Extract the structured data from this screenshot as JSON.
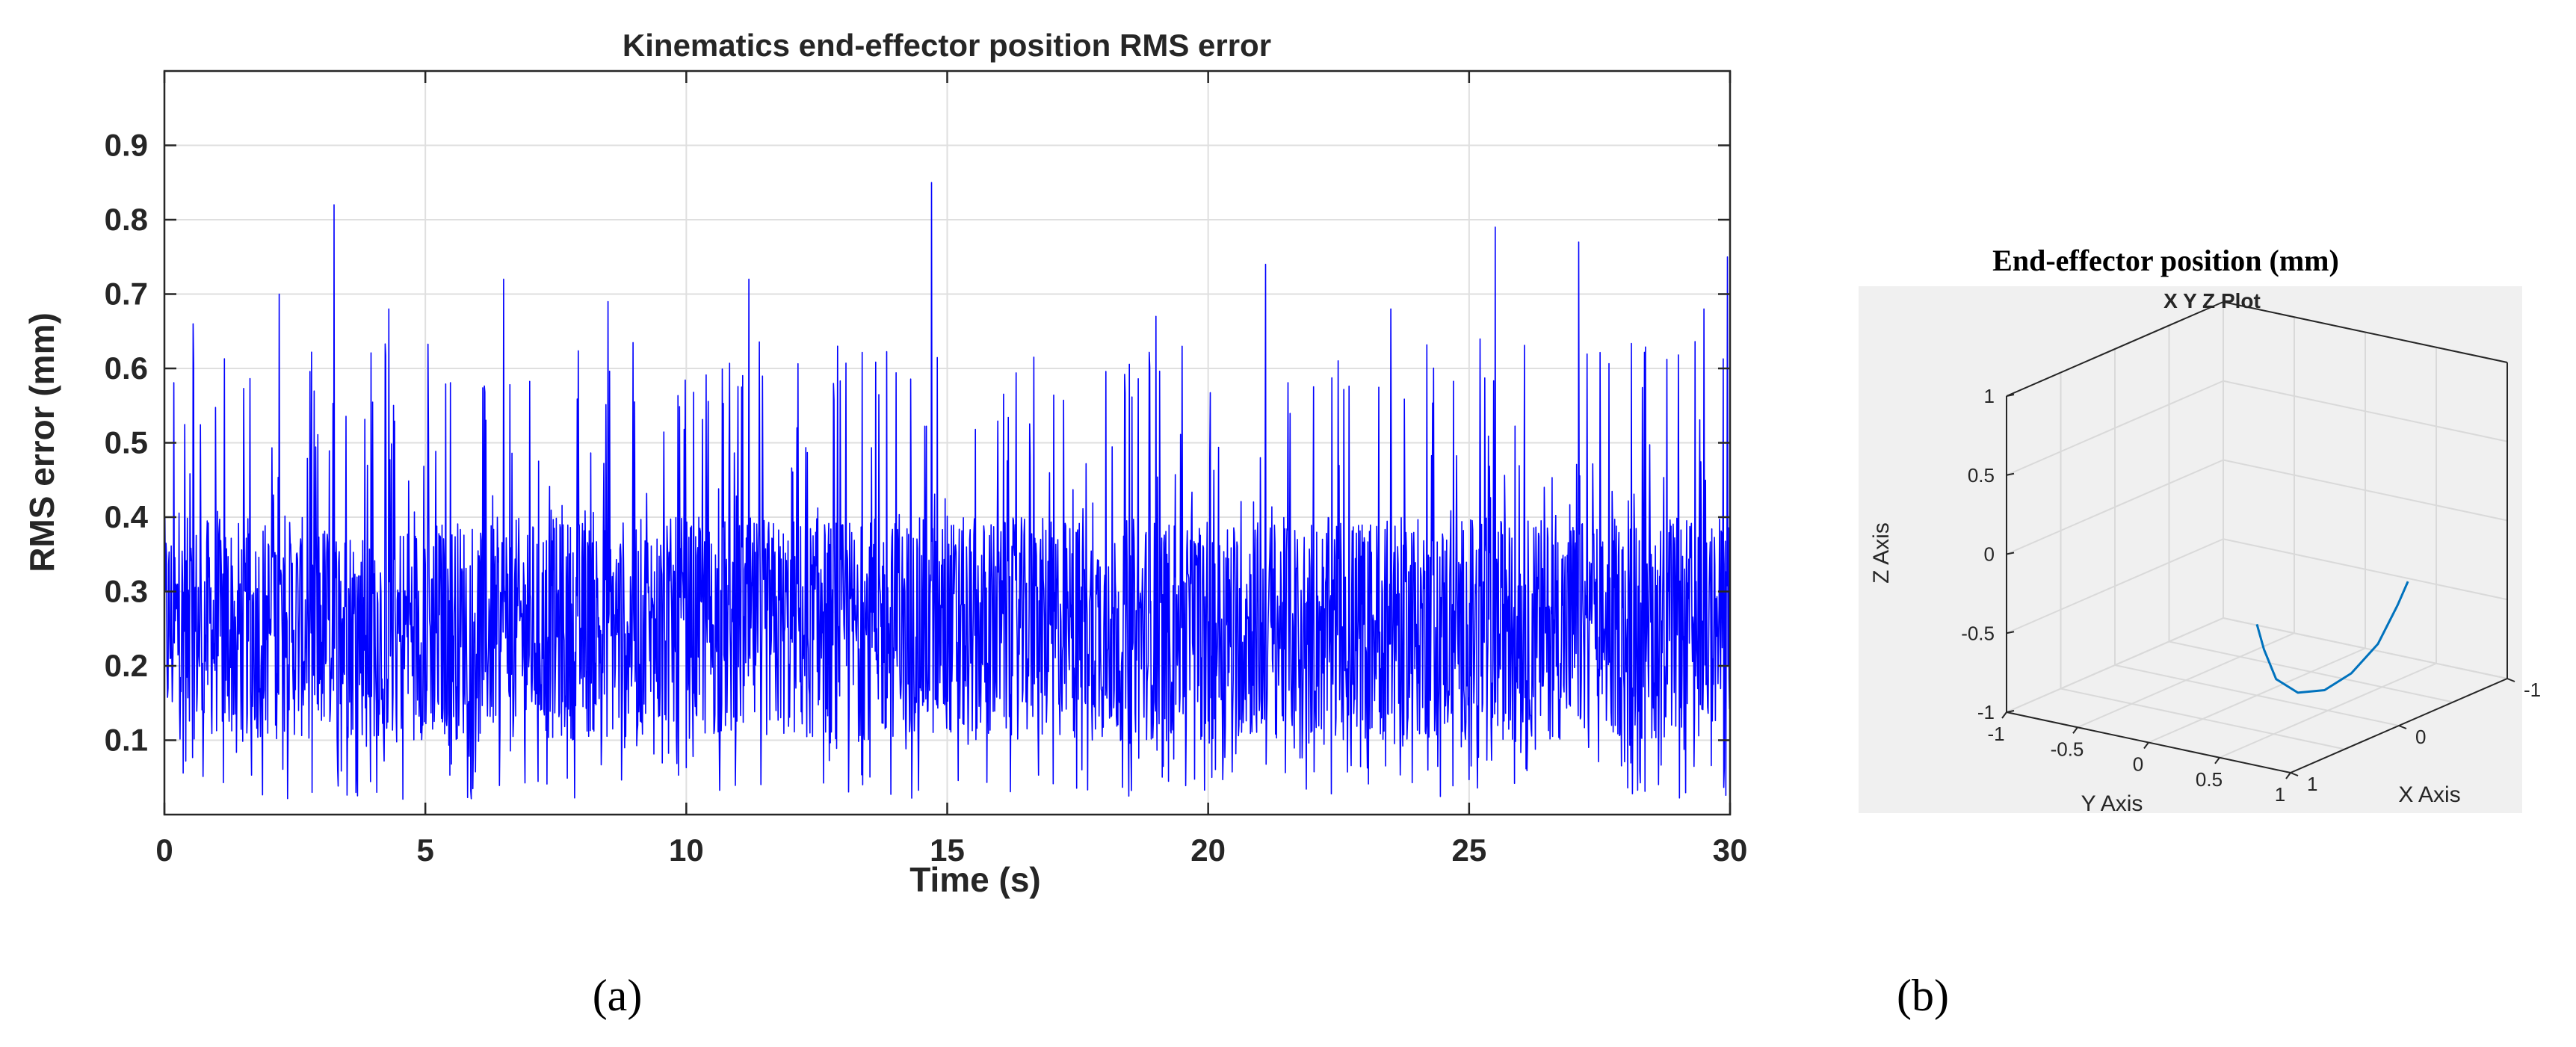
{
  "chart_data": [
    {
      "type": "line",
      "title": "Kinematics end-effector position RMS error",
      "xlabel": "Time (s)",
      "ylabel": "RMS error (mm)",
      "xlim": [
        0,
        30
      ],
      "ylim": [
        0,
        1.0
      ],
      "xticks": [
        "0",
        "5",
        "10",
        "15",
        "20",
        "25",
        "30"
      ],
      "yticks": [
        "0.1",
        "0.2",
        "0.3",
        "0.4",
        "0.5",
        "0.6",
        "0.7",
        "0.8",
        "0.9"
      ],
      "grid": true,
      "line_color": "#0000ff",
      "panel_label": "(a)",
      "series_summary": {
        "baseline_range": [
          0.1,
          0.4
        ],
        "notable_peaks": [
          {
            "x": 0.55,
            "y": 0.66
          },
          {
            "x": 2.2,
            "y": 0.7
          },
          {
            "x": 3.25,
            "y": 0.82
          },
          {
            "x": 4.3,
            "y": 0.68
          },
          {
            "x": 6.5,
            "y": 0.72
          },
          {
            "x": 8.5,
            "y": 0.69
          },
          {
            "x": 11.2,
            "y": 0.72
          },
          {
            "x": 14.7,
            "y": 0.85
          },
          {
            "x": 19.0,
            "y": 0.67
          },
          {
            "x": 21.1,
            "y": 0.74
          },
          {
            "x": 23.5,
            "y": 0.68
          },
          {
            "x": 25.5,
            "y": 0.79
          },
          {
            "x": 27.1,
            "y": 0.77
          },
          {
            "x": 29.5,
            "y": 0.68
          },
          {
            "x": 29.95,
            "y": 0.75
          }
        ]
      }
    },
    {
      "type": "line",
      "chart_variant": "3d",
      "title": "End-effector position (mm)",
      "subtitle": "X Y Z Plot",
      "xlabel": "X Axis",
      "ylabel": "Y Axis",
      "zlabel": "Z Axis",
      "xlim": [
        -1,
        1
      ],
      "ylim": [
        -1,
        1
      ],
      "zlim": [
        -1,
        1
      ],
      "xticks": [
        "-1",
        "0",
        "1"
      ],
      "yticks": [
        "-1",
        "-0.5",
        "0",
        "0.5",
        "1"
      ],
      "zticks": [
        "-1",
        "-0.5",
        "0",
        "0.5",
        "1"
      ],
      "grid": true,
      "line_color": "#0072bd",
      "background": "#f0f0f0",
      "panel_label": "(b)",
      "trajectory": [
        {
          "x": 0.0,
          "y": 0.0,
          "z": -0.55
        },
        {
          "x": 0.0,
          "y": 0.05,
          "z": -0.7
        },
        {
          "x": -0.02,
          "y": 0.12,
          "z": -0.88
        },
        {
          "x": -0.05,
          "y": 0.25,
          "z": -0.95
        },
        {
          "x": -0.1,
          "y": 0.4,
          "z": -0.92
        },
        {
          "x": -0.15,
          "y": 0.55,
          "z": -0.8
        },
        {
          "x": -0.2,
          "y": 0.7,
          "z": -0.6
        },
        {
          "x": -0.25,
          "y": 0.8,
          "z": -0.35
        },
        {
          "x": -0.28,
          "y": 0.85,
          "z": -0.2
        }
      ]
    }
  ]
}
